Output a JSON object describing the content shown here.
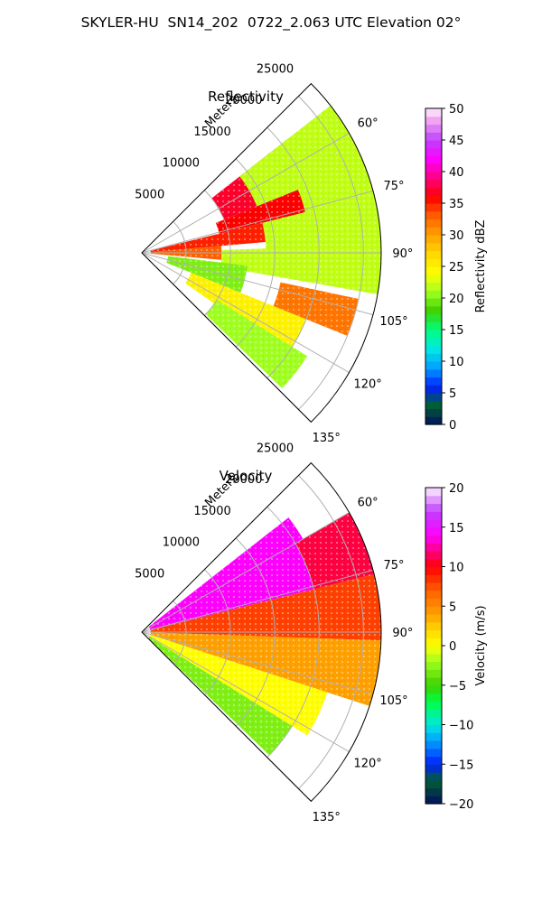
{
  "figure_title": "SKYLER-HU  SN14_202  0722_2.063 UTC Elevation 02°",
  "chart_data": [
    {
      "type": "polar-ppi",
      "title": "Reflectivity",
      "range_label": "Meters",
      "range_ticks": [
        "5000",
        "10000",
        "15000",
        "20000",
        "25000"
      ],
      "range_tick_values": [
        5000,
        10000,
        15000,
        20000,
        25000
      ],
      "azimuth_ticks": [
        "60°",
        "75°",
        "90°",
        "105°",
        "120°",
        "135°"
      ],
      "azimuth_tick_values": [
        60,
        75,
        90,
        105,
        120,
        135
      ],
      "azimuth_range": [
        45,
        135
      ],
      "max_range_m": 27000,
      "colorbar": {
        "label": "Reflectivity dBZ",
        "min": 0,
        "max": 50,
        "ticks": [
          "0",
          "5",
          "10",
          "15",
          "20",
          "25",
          "30",
          "35",
          "40",
          "45",
          "50"
        ],
        "tick_values": [
          0,
          5,
          10,
          15,
          20,
          25,
          30,
          35,
          40,
          45,
          50
        ],
        "stops": [
          [
            0,
            "#001060"
          ],
          [
            3,
            "#006030"
          ],
          [
            6,
            "#0020ff"
          ],
          [
            9,
            "#00a0ff"
          ],
          [
            12,
            "#00e8e0"
          ],
          [
            15,
            "#00ff80"
          ],
          [
            18,
            "#40d000"
          ],
          [
            21,
            "#a0ff20"
          ],
          [
            24,
            "#ffff00"
          ],
          [
            27,
            "#ffd800"
          ],
          [
            30,
            "#ffa000"
          ],
          [
            33,
            "#ff6000"
          ],
          [
            36,
            "#ff0000"
          ],
          [
            39,
            "#ff0080"
          ],
          [
            42,
            "#ff00ff"
          ],
          [
            45,
            "#c040ff"
          ],
          [
            48,
            "#f0a0f0"
          ],
          [
            50,
            "#fff0ff"
          ]
        ]
      },
      "echo_regions": [
        {
          "az": [
            52,
            68
          ],
          "r": [
            10000,
            21000
          ],
          "value": 37
        },
        {
          "az": [
            52,
            90
          ],
          "r": [
            14000,
            27000
          ],
          "value": 22
        },
        {
          "az": [
            68,
            76
          ],
          "r": [
            9000,
            19000
          ],
          "value": 36
        },
        {
          "az": [
            76,
            85
          ],
          "r": [
            1000,
            14000
          ],
          "value": 35
        },
        {
          "az": [
            85,
            95
          ],
          "r": [
            1000,
            9000
          ],
          "value": 33
        },
        {
          "az": [
            88,
            100
          ],
          "r": [
            9000,
            27000
          ],
          "value": 22
        },
        {
          "az": [
            97,
            112
          ],
          "r": [
            3000,
            12000
          ],
          "value": 20
        },
        {
          "az": [
            112,
            125
          ],
          "r": [
            6000,
            20000
          ],
          "value": 25
        },
        {
          "az": [
            122,
            134
          ],
          "r": [
            10000,
            22000
          ],
          "value": 21
        },
        {
          "az": [
            102,
            112
          ],
          "r": [
            16000,
            25000
          ],
          "value": 32
        }
      ]
    },
    {
      "type": "polar-ppi",
      "title": "Velocity",
      "range_label": "Meters",
      "range_ticks": [
        "5000",
        "10000",
        "15000",
        "20000",
        "25000"
      ],
      "range_tick_values": [
        5000,
        10000,
        15000,
        20000,
        25000
      ],
      "azimuth_ticks": [
        "60°",
        "75°",
        "90°",
        "105°",
        "120°",
        "135°"
      ],
      "azimuth_tick_values": [
        60,
        75,
        90,
        105,
        120,
        135
      ],
      "azimuth_range": [
        45,
        135
      ],
      "max_range_m": 27000,
      "colorbar": {
        "label": "Velocity (m/s)",
        "min": -20,
        "max": 20,
        "ticks": [
          "−20",
          "−15",
          "−10",
          "−5",
          "0",
          "5",
          "10",
          "15",
          "20"
        ],
        "tick_values": [
          -20,
          -15,
          -10,
          -5,
          0,
          5,
          10,
          15,
          20
        ],
        "stops": [
          [
            -20,
            "#001060"
          ],
          [
            -17,
            "#006030"
          ],
          [
            -15,
            "#0020ff"
          ],
          [
            -12,
            "#00a0ff"
          ],
          [
            -10,
            "#00e8e0"
          ],
          [
            -7,
            "#00ff40"
          ],
          [
            -5,
            "#40d000"
          ],
          [
            -2,
            "#a0ff20"
          ],
          [
            0,
            "#ffff00"
          ],
          [
            2,
            "#ffd800"
          ],
          [
            4,
            "#ffa000"
          ],
          [
            7,
            "#ff6000"
          ],
          [
            10,
            "#ff0000"
          ],
          [
            12,
            "#ff0080"
          ],
          [
            14,
            "#ff00ff"
          ],
          [
            17,
            "#c040ff"
          ],
          [
            20,
            "#fff0ff"
          ]
        ]
      },
      "echo_regions": [
        {
          "az": [
            52,
            76
          ],
          "r": [
            1000,
            21000
          ],
          "value": 14
        },
        {
          "az": [
            60,
            76
          ],
          "r": [
            20000,
            27000
          ],
          "value": 11
        },
        {
          "az": [
            76,
            92
          ],
          "r": [
            1000,
            27000
          ],
          "value": 8
        },
        {
          "az": [
            92,
            108
          ],
          "r": [
            1000,
            27000
          ],
          "value": 4
        },
        {
          "az": [
            108,
            122
          ],
          "r": [
            1000,
            22000
          ],
          "value": 0
        },
        {
          "az": [
            122,
            134
          ],
          "r": [
            1000,
            20000
          ],
          "value": -3
        }
      ]
    }
  ]
}
